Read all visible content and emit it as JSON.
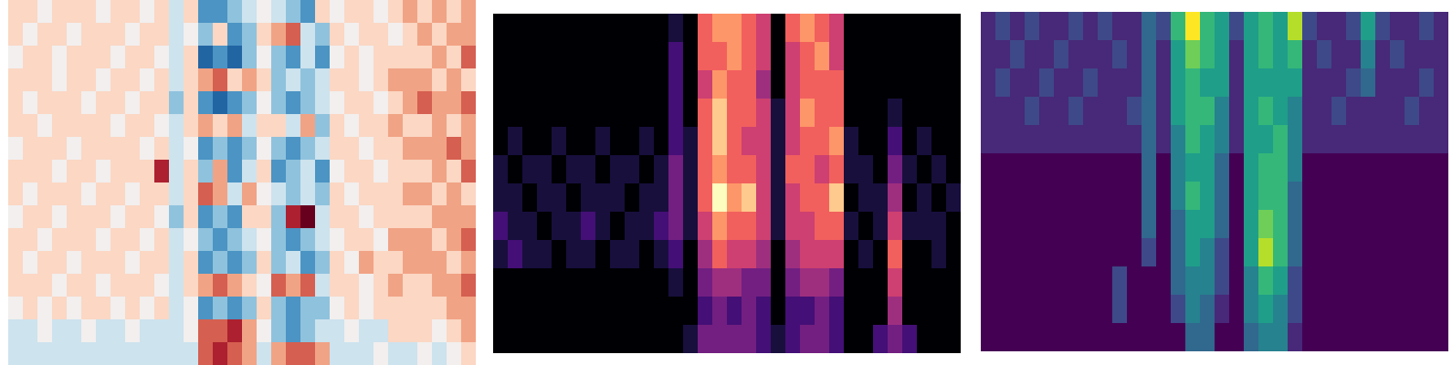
{
  "chart_data": [
    {
      "type": "heatmap",
      "color": "BuRd",
      "tick_labels": false,
      "zlim": [
        -5,
        5
      ],
      "cells": [
        [
          1,
          1,
          0,
          1,
          1,
          1,
          0,
          1,
          1,
          0,
          1,
          -1,
          1,
          -3,
          -3,
          -2,
          -1,
          0,
          -1,
          -2,
          -3,
          1,
          0,
          1,
          1,
          0,
          1,
          2,
          1,
          2,
          1,
          2
        ],
        [
          1,
          0,
          1,
          1,
          0,
          1,
          1,
          1,
          0,
          1,
          1,
          -1,
          0,
          -2,
          1,
          -3,
          -2,
          1,
          2,
          3,
          -1,
          -2,
          1,
          0,
          1,
          1,
          0,
          1,
          2,
          1,
          2,
          2
        ],
        [
          0,
          1,
          1,
          0,
          1,
          1,
          1,
          0,
          1,
          1,
          0,
          -1,
          1,
          -4,
          -3,
          -4,
          -2,
          0,
          -2,
          -3,
          -1,
          -3,
          0,
          1,
          0,
          1,
          1,
          1,
          1,
          2,
          1,
          3
        ],
        [
          1,
          1,
          1,
          0,
          1,
          1,
          0,
          1,
          1,
          0,
          1,
          -1,
          1,
          2,
          3,
          1,
          2,
          1,
          -2,
          -1,
          -2,
          -1,
          1,
          1,
          0,
          1,
          2,
          2,
          2,
          1,
          2,
          1
        ],
        [
          1,
          0,
          1,
          1,
          1,
          0,
          1,
          1,
          0,
          1,
          1,
          -2,
          1,
          -3,
          -4,
          -3,
          -2,
          0,
          -2,
          -3,
          -2,
          -1,
          0,
          1,
          1,
          0,
          1,
          2,
          3,
          2,
          2,
          3
        ],
        [
          1,
          1,
          0,
          1,
          1,
          1,
          1,
          0,
          1,
          1,
          0,
          -1,
          1,
          2,
          1,
          2,
          -1,
          1,
          1,
          -1,
          2,
          -2,
          1,
          0,
          1,
          1,
          2,
          1,
          1,
          2,
          1,
          2
        ],
        [
          0,
          1,
          1,
          1,
          0,
          1,
          1,
          1,
          1,
          0,
          1,
          -1,
          0,
          -3,
          -2,
          -3,
          -2,
          0,
          -2,
          -3,
          -2,
          -1,
          1,
          1,
          0,
          1,
          1,
          2,
          2,
          2,
          3,
          2
        ],
        [
          1,
          1,
          1,
          0,
          1,
          1,
          0,
          1,
          1,
          1,
          4,
          -1,
          1,
          -2,
          2,
          -3,
          -1,
          1,
          -3,
          -2,
          -1,
          -3,
          0,
          1,
          1,
          0,
          1,
          1,
          1,
          2,
          1,
          3
        ],
        [
          1,
          0,
          1,
          1,
          1,
          0,
          1,
          1,
          0,
          1,
          1,
          -1,
          1,
          3,
          2,
          -1,
          2,
          0,
          -1,
          -2,
          -1,
          -2,
          1,
          0,
          1,
          1,
          1,
          2,
          2,
          1,
          2,
          1
        ],
        [
          0,
          1,
          1,
          0,
          1,
          1,
          1,
          0,
          1,
          1,
          0,
          -2,
          1,
          -3,
          -2,
          -3,
          1,
          1,
          -2,
          4,
          5,
          -1,
          1,
          1,
          0,
          1,
          1,
          1,
          1,
          2,
          2,
          2
        ],
        [
          1,
          1,
          0,
          1,
          1,
          1,
          0,
          1,
          1,
          0,
          1,
          -1,
          0,
          -2,
          -3,
          -2,
          -1,
          0,
          -2,
          -3,
          -2,
          -1,
          0,
          1,
          1,
          0,
          2,
          2,
          2,
          1,
          2,
          3
        ],
        [
          1,
          0,
          1,
          1,
          0,
          1,
          1,
          1,
          0,
          1,
          1,
          -1,
          1,
          -3,
          -2,
          -3,
          -2,
          1,
          -2,
          -1,
          -3,
          -2,
          1,
          0,
          2,
          1,
          1,
          2,
          2,
          2,
          1,
          2
        ],
        [
          1,
          1,
          1,
          0,
          1,
          1,
          0,
          1,
          1,
          1,
          0,
          -1,
          1,
          2,
          3,
          2,
          1,
          0,
          3,
          2,
          3,
          -1,
          1,
          1,
          0,
          1,
          2,
          1,
          1,
          2,
          2,
          3
        ],
        [
          0,
          1,
          0,
          1,
          0,
          1,
          1,
          0,
          1,
          0,
          1,
          -1,
          0,
          -3,
          -2,
          -3,
          -2,
          1,
          -2,
          -3,
          -2,
          -2,
          0,
          1,
          0,
          1,
          1,
          1,
          1,
          1,
          2,
          2
        ],
        [
          -1,
          -1,
          0,
          -1,
          -1,
          0,
          -1,
          -1,
          0,
          -1,
          -1,
          -1,
          0,
          3,
          3,
          4,
          2,
          0,
          -2,
          -3,
          -2,
          -1,
          -1,
          0,
          -1,
          -1,
          1,
          1,
          1,
          0,
          1,
          2
        ],
        [
          -1,
          -1,
          -1,
          -1,
          -1,
          -1,
          -1,
          -1,
          -1,
          -1,
          -1,
          -1,
          -1,
          3,
          4,
          3,
          2,
          -1,
          2,
          3,
          3,
          2,
          -1,
          -1,
          -1,
          0,
          -1,
          -1,
          0,
          -1,
          0,
          1
        ]
      ]
    },
    {
      "type": "heatmap",
      "color": "magma",
      "tick_labels": false,
      "zlim": [
        0,
        9
      ],
      "cells": [
        [
          0,
          0,
          0,
          0,
          0,
          0,
          0,
          0,
          0,
          0,
          0,
          0,
          1,
          0,
          6,
          7,
          7,
          6,
          5,
          0,
          6,
          7,
          6,
          5,
          0,
          0,
          0,
          0,
          0,
          0,
          0,
          0
        ],
        [
          0,
          0,
          0,
          0,
          0,
          0,
          0,
          0,
          0,
          0,
          0,
          0,
          2,
          0,
          6,
          6,
          7,
          6,
          5,
          0,
          5,
          6,
          7,
          5,
          0,
          0,
          0,
          0,
          0,
          0,
          0,
          0
        ],
        [
          0,
          0,
          0,
          0,
          0,
          0,
          0,
          0,
          0,
          0,
          0,
          0,
          2,
          0,
          5,
          7,
          6,
          6,
          4,
          0,
          5,
          6,
          6,
          6,
          0,
          0,
          0,
          0,
          0,
          0,
          0,
          0
        ],
        [
          0,
          0,
          0,
          0,
          0,
          0,
          0,
          0,
          0,
          0,
          0,
          0,
          2,
          0,
          6,
          8,
          6,
          6,
          5,
          1,
          5,
          7,
          6,
          6,
          0,
          0,
          0,
          1,
          0,
          0,
          0,
          0
        ],
        [
          0,
          1,
          0,
          0,
          1,
          0,
          0,
          1,
          0,
          0,
          1,
          0,
          2,
          1,
          6,
          8,
          6,
          5,
          5,
          1,
          5,
          6,
          6,
          7,
          1,
          0,
          0,
          2,
          0,
          1,
          0,
          0
        ],
        [
          1,
          0,
          1,
          1,
          0,
          1,
          1,
          0,
          1,
          1,
          0,
          1,
          3,
          1,
          6,
          7,
          6,
          6,
          5,
          1,
          6,
          6,
          5,
          6,
          1,
          1,
          0,
          3,
          1,
          0,
          1,
          0
        ],
        [
          1,
          1,
          0,
          1,
          1,
          0,
          1,
          1,
          1,
          0,
          1,
          1,
          3,
          1,
          6,
          9,
          7,
          8,
          5,
          1,
          5,
          6,
          6,
          8,
          0,
          1,
          1,
          4,
          0,
          1,
          0,
          1
        ],
        [
          2,
          1,
          1,
          0,
          1,
          1,
          2,
          1,
          0,
          1,
          1,
          2,
          3,
          1,
          5,
          7,
          6,
          6,
          5,
          1,
          5,
          5,
          6,
          6,
          1,
          0,
          1,
          5,
          1,
          1,
          1,
          0
        ],
        [
          1,
          2,
          1,
          1,
          0,
          1,
          1,
          0,
          1,
          1,
          0,
          1,
          2,
          0,
          4,
          6,
          5,
          5,
          4,
          0,
          4,
          5,
          5,
          5,
          0,
          1,
          0,
          6,
          0,
          0,
          1,
          0
        ],
        [
          0,
          0,
          0,
          0,
          0,
          0,
          0,
          0,
          0,
          0,
          0,
          0,
          1,
          0,
          3,
          4,
          4,
          3,
          3,
          0,
          3,
          4,
          4,
          3,
          0,
          0,
          0,
          5,
          0,
          0,
          0,
          0
        ],
        [
          0,
          0,
          0,
          0,
          0,
          0,
          0,
          0,
          0,
          0,
          0,
          0,
          0,
          0,
          2,
          3,
          2,
          3,
          2,
          0,
          2,
          2,
          3,
          2,
          0,
          0,
          0,
          4,
          0,
          0,
          0,
          0
        ],
        [
          0,
          0,
          0,
          0,
          0,
          0,
          0,
          0,
          0,
          0,
          0,
          0,
          0,
          1,
          3,
          3,
          3,
          3,
          2,
          1,
          2,
          3,
          3,
          2,
          0,
          0,
          2,
          3,
          2,
          0,
          0,
          0
        ]
      ]
    },
    {
      "type": "heatmap",
      "color": "viridis",
      "tick_labels": false,
      "zlim": [
        0,
        9
      ],
      "cells": [
        [
          1,
          2,
          1,
          2,
          1,
          1,
          2,
          1,
          2,
          1,
          1,
          3,
          2,
          6,
          9,
          6,
          5,
          2,
          5,
          6,
          5,
          8,
          2,
          1,
          1,
          2,
          5,
          2,
          1,
          1,
          2,
          1
        ],
        [
          1,
          1,
          2,
          1,
          1,
          2,
          1,
          1,
          1,
          2,
          1,
          3,
          1,
          5,
          7,
          6,
          5,
          1,
          5,
          6,
          5,
          6,
          1,
          2,
          1,
          1,
          4,
          1,
          2,
          1,
          1,
          1
        ],
        [
          1,
          2,
          1,
          1,
          2,
          1,
          1,
          2,
          1,
          1,
          1,
          3,
          1,
          5,
          6,
          5,
          5,
          1,
          5,
          5,
          5,
          5,
          1,
          1,
          1,
          2,
          3,
          1,
          1,
          1,
          2,
          1
        ],
        [
          1,
          1,
          1,
          2,
          1,
          1,
          2,
          1,
          1,
          1,
          2,
          3,
          1,
          5,
          6,
          6,
          4,
          1,
          5,
          6,
          5,
          4,
          1,
          1,
          2,
          1,
          1,
          1,
          1,
          2,
          1,
          1
        ],
        [
          1,
          1,
          1,
          1,
          1,
          1,
          1,
          1,
          1,
          1,
          1,
          3,
          1,
          4,
          6,
          5,
          4,
          1,
          5,
          5,
          6,
          4,
          1,
          1,
          1,
          1,
          1,
          1,
          1,
          1,
          1,
          1
        ],
        [
          0,
          0,
          0,
          0,
          0,
          0,
          0,
          0,
          0,
          0,
          0,
          3,
          0,
          4,
          5,
          5,
          3,
          0,
          5,
          6,
          6,
          4,
          0,
          0,
          0,
          0,
          0,
          0,
          0,
          0,
          0,
          0
        ],
        [
          0,
          0,
          0,
          0,
          0,
          0,
          0,
          0,
          0,
          0,
          0,
          3,
          0,
          4,
          6,
          5,
          3,
          0,
          5,
          6,
          6,
          3,
          0,
          0,
          0,
          0,
          0,
          0,
          0,
          0,
          0,
          0
        ],
        [
          0,
          0,
          0,
          0,
          0,
          0,
          0,
          0,
          0,
          0,
          0,
          3,
          0,
          3,
          5,
          5,
          3,
          0,
          5,
          7,
          6,
          3,
          0,
          0,
          0,
          0,
          0,
          0,
          0,
          0,
          0,
          0
        ],
        [
          0,
          0,
          0,
          0,
          0,
          0,
          0,
          0,
          0,
          0,
          0,
          2,
          0,
          3,
          5,
          4,
          2,
          0,
          5,
          8,
          6,
          3,
          0,
          0,
          0,
          0,
          0,
          0,
          0,
          0,
          0,
          0
        ],
        [
          0,
          0,
          0,
          0,
          0,
          0,
          0,
          0,
          0,
          2,
          0,
          0,
          0,
          3,
          4,
          4,
          2,
          0,
          4,
          6,
          5,
          2,
          0,
          0,
          0,
          0,
          0,
          0,
          0,
          0,
          0,
          0
        ],
        [
          0,
          0,
          0,
          0,
          0,
          0,
          0,
          0,
          0,
          2,
          0,
          0,
          0,
          2,
          4,
          3,
          1,
          0,
          4,
          5,
          4,
          2,
          0,
          0,
          0,
          0,
          0,
          0,
          0,
          0,
          0,
          0
        ],
        [
          0,
          0,
          0,
          0,
          0,
          0,
          0,
          0,
          0,
          0,
          0,
          0,
          0,
          0,
          3,
          3,
          0,
          0,
          3,
          4,
          4,
          1,
          0,
          0,
          0,
          0,
          0,
          0,
          0,
          0,
          0,
          0
        ]
      ]
    }
  ]
}
